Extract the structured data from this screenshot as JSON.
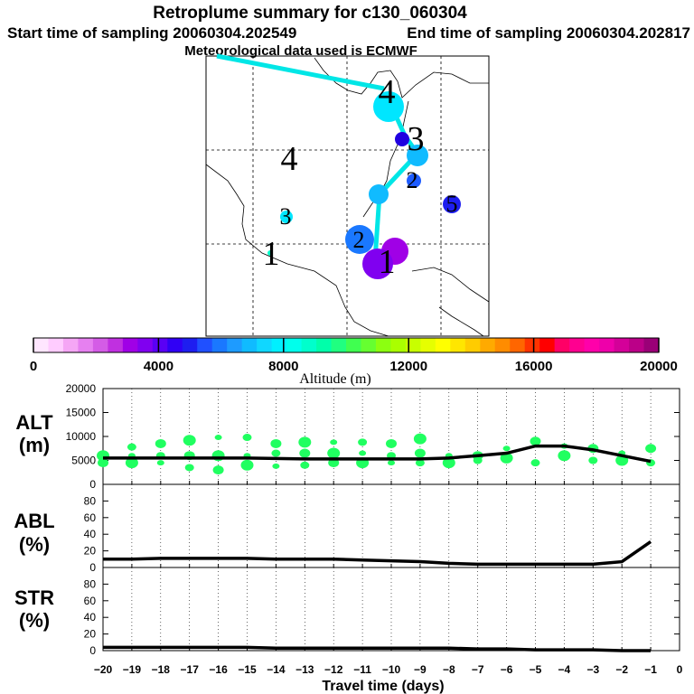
{
  "header": {
    "title": "Retroplume summary for c130_060304",
    "start_label": "Start time of sampling 20060304.202549",
    "end_label": "End time of sampling 20060304.202817",
    "met_label": "Meteorological data used is ECMWF"
  },
  "map": {
    "labels": [
      "4",
      "3",
      "1",
      "4",
      "3",
      "2",
      "2",
      "1",
      "5"
    ]
  },
  "colorbar": {
    "title": "Altitude (m)",
    "ticks": [
      "0",
      "4000",
      "8000",
      "12000",
      "16000",
      "20000"
    ],
    "range": [
      0,
      20000
    ],
    "colors": [
      "#ffe6ff",
      "#ffccff",
      "#f5a6f5",
      "#e680f0",
      "#d45ce6",
      "#c030e0",
      "#a000e6",
      "#8000f0",
      "#5a00f5",
      "#3000f5",
      "#1e1ef0",
      "#2050ff",
      "#1a78ff",
      "#1e9bff",
      "#10bbff",
      "#10d7ff",
      "#00f0ff",
      "#00ffec",
      "#00ffcc",
      "#00ffaa",
      "#20ff80",
      "#40ff50",
      "#66ff30",
      "#8cff10",
      "#aaff00",
      "#c8ff00",
      "#e6ff00",
      "#ffff00",
      "#ffe600",
      "#ffcc00",
      "#ffaa00",
      "#ff8c00",
      "#ff6600",
      "#ff3300",
      "#ff0000",
      "#ff0066",
      "#ff0090",
      "#ff00aa",
      "#ee00aa",
      "#d40099",
      "#bb0088",
      "#9a0077"
    ]
  },
  "chart_data": [
    {
      "type": "line",
      "name": "ALT",
      "panel_label": "ALT",
      "panel_unit": "(m)",
      "ylim": [
        0,
        20000
      ],
      "yticks": [
        "0",
        "5000",
        "10000",
        "15000",
        "20000"
      ],
      "x": [
        -20,
        -19,
        -18,
        -17,
        -16,
        -15,
        -14,
        -13,
        -12,
        -11,
        -10,
        -9,
        -8,
        -7,
        -6,
        -5,
        -4,
        -3,
        -2,
        -1
      ],
      "values": [
        5500,
        5500,
        5500,
        5500,
        5500,
        5500,
        5400,
        5300,
        5300,
        5300,
        5300,
        5300,
        5500,
        6000,
        6500,
        8000,
        8000,
        7200,
        6000,
        4800
      ],
      "scatter_points": [
        [
          -20,
          6000
        ],
        [
          -20,
          4500
        ],
        [
          -19,
          7800
        ],
        [
          -19,
          6000
        ],
        [
          -19,
          4500
        ],
        [
          -18,
          8500
        ],
        [
          -18,
          6000
        ],
        [
          -18,
          4500
        ],
        [
          -17,
          9200
        ],
        [
          -17,
          6000
        ],
        [
          -17,
          3500
        ],
        [
          -16,
          9800
        ],
        [
          -16,
          6000
        ],
        [
          -16,
          3000
        ],
        [
          -15,
          9800
        ],
        [
          -15,
          6000
        ],
        [
          -15,
          4000
        ],
        [
          -14,
          8500
        ],
        [
          -14,
          6500
        ],
        [
          -14,
          3800
        ],
        [
          -13,
          8800
        ],
        [
          -13,
          6500
        ],
        [
          -13,
          4000
        ],
        [
          -12,
          8800
        ],
        [
          -12,
          6500
        ],
        [
          -12,
          4500
        ],
        [
          -11,
          8800
        ],
        [
          -11,
          6500
        ],
        [
          -11,
          4500
        ],
        [
          -10,
          8500
        ],
        [
          -10,
          6000
        ],
        [
          -10,
          4500
        ],
        [
          -9,
          9500
        ],
        [
          -9,
          6500
        ],
        [
          -9,
          4500
        ],
        [
          -8,
          6000
        ],
        [
          -8,
          4500
        ],
        [
          -7,
          6000
        ],
        [
          -7,
          5000
        ],
        [
          -6,
          7500
        ],
        [
          -6,
          5500
        ],
        [
          -5,
          9000
        ],
        [
          -5,
          4500
        ],
        [
          -4,
          8000
        ],
        [
          -4,
          6000
        ],
        [
          -3,
          7500
        ],
        [
          -3,
          5000
        ],
        [
          -2,
          6500
        ],
        [
          -2,
          5000
        ],
        [
          -1,
          7500
        ],
        [
          -1,
          4500
        ]
      ]
    },
    {
      "type": "line",
      "name": "ABL",
      "panel_label": "ABL",
      "panel_unit": "(%)",
      "ylim": [
        0,
        100
      ],
      "yticks": [
        "0",
        "20",
        "40",
        "60",
        "80"
      ],
      "x": [
        -20,
        -19,
        -18,
        -17,
        -16,
        -15,
        -14,
        -13,
        -12,
        -11,
        -10,
        -9,
        -8,
        -7,
        -6,
        -5,
        -4,
        -3,
        -2,
        -1
      ],
      "values": [
        10,
        10,
        11,
        11,
        11,
        11,
        10,
        10,
        10,
        9,
        8,
        7,
        5,
        4,
        4,
        4,
        4,
        4,
        7,
        31
      ]
    },
    {
      "type": "line",
      "name": "STR",
      "panel_label": "STR",
      "panel_unit": "(%)",
      "ylim": [
        0,
        100
      ],
      "yticks": [
        "0",
        "20",
        "40",
        "60",
        "80"
      ],
      "x": [
        -20,
        -19,
        -18,
        -17,
        -16,
        -15,
        -14,
        -13,
        -12,
        -11,
        -10,
        -9,
        -8,
        -7,
        -6,
        -5,
        -4,
        -3,
        -2,
        -1
      ],
      "values": [
        4,
        4,
        4,
        4,
        4,
        4,
        3,
        3,
        3,
        3,
        3,
        3,
        3,
        2,
        2,
        1,
        1,
        1,
        0,
        0
      ],
      "xlabel": "Travel time (days)",
      "xticks": [
        "−20",
        "−19",
        "−18",
        "−17",
        "−16",
        "−15",
        "−14",
        "−13",
        "−12",
        "−11",
        "−10",
        "−9",
        "−8",
        "−7",
        "−6",
        "−5",
        "−4",
        "−3",
        "−2",
        "−1",
        "0"
      ]
    }
  ]
}
